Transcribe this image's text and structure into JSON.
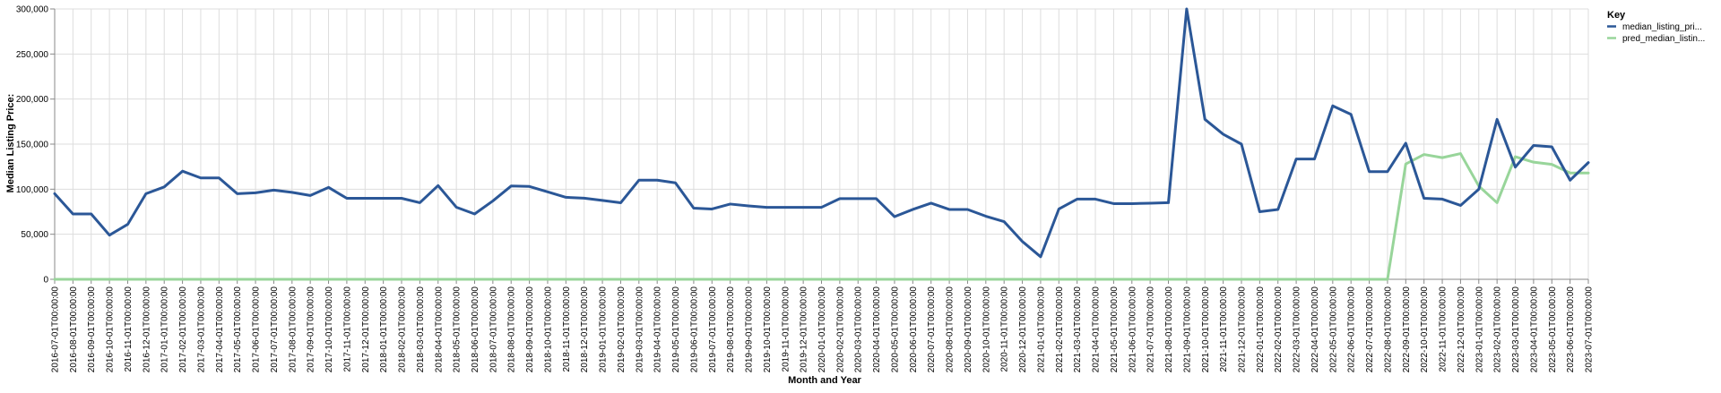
{
  "chart_data": {
    "type": "line",
    "title": "",
    "xlabel": "Month and Year",
    "ylabel": "Median Listing Price:",
    "ylim": [
      0,
      300000
    ],
    "y_ticks": [
      "0",
      "50,000",
      "100,000",
      "150,000",
      "200,000",
      "250,000",
      "300,000"
    ],
    "y_tick_values": [
      0,
      50000,
      100000,
      150000,
      200000,
      250000,
      300000
    ],
    "grid": true,
    "legend": {
      "title": "Key",
      "placement": "top-right"
    },
    "x": [
      "2016-07-01T00:00:00",
      "2016-08-01T00:00:00",
      "2016-09-01T00:00:00",
      "2016-10-01T00:00:00",
      "2016-11-01T00:00:00",
      "2016-12-01T00:00:00",
      "2017-01-01T00:00:00",
      "2017-02-01T00:00:00",
      "2017-03-01T00:00:00",
      "2017-04-01T00:00:00",
      "2017-05-01T00:00:00",
      "2017-06-01T00:00:00",
      "2017-07-01T00:00:00",
      "2017-08-01T00:00:00",
      "2017-09-01T00:00:00",
      "2017-10-01T00:00:00",
      "2017-11-01T00:00:00",
      "2017-12-01T00:00:00",
      "2018-01-01T00:00:00",
      "2018-02-01T00:00:00",
      "2018-03-01T00:00:00",
      "2018-04-01T00:00:00",
      "2018-05-01T00:00:00",
      "2018-06-01T00:00:00",
      "2018-07-01T00:00:00",
      "2018-08-01T00:00:00",
      "2018-09-01T00:00:00",
      "2018-10-01T00:00:00",
      "2018-11-01T00:00:00",
      "2018-12-01T00:00:00",
      "2019-01-01T00:00:00",
      "2019-02-01T00:00:00",
      "2019-03-01T00:00:00",
      "2019-04-01T00:00:00",
      "2019-05-01T00:00:00",
      "2019-06-01T00:00:00",
      "2019-07-01T00:00:00",
      "2019-08-01T00:00:00",
      "2019-09-01T00:00:00",
      "2019-10-01T00:00:00",
      "2019-11-01T00:00:00",
      "2019-12-01T00:00:00",
      "2020-01-01T00:00:00",
      "2020-02-01T00:00:00",
      "2020-03-01T00:00:00",
      "2020-04-01T00:00:00",
      "2020-05-01T00:00:00",
      "2020-06-01T00:00:00",
      "2020-07-01T00:00:00",
      "2020-08-01T00:00:00",
      "2020-09-01T00:00:00",
      "2020-10-01T00:00:00",
      "2020-11-01T00:00:00",
      "2020-12-01T00:00:00",
      "2021-01-01T00:00:00",
      "2021-02-01T00:00:00",
      "2021-03-01T00:00:00",
      "2021-04-01T00:00:00",
      "2021-05-01T00:00:00",
      "2021-06-01T00:00:00",
      "2021-07-01T00:00:00",
      "2021-08-01T00:00:00",
      "2021-09-01T00:00:00",
      "2021-10-01T00:00:00",
      "2021-11-01T00:00:00",
      "2021-12-01T00:00:00",
      "2022-01-01T00:00:00",
      "2022-02-01T00:00:00",
      "2022-03-01T00:00:00",
      "2022-04-01T00:00:00",
      "2022-05-01T00:00:00",
      "2022-06-01T00:00:00",
      "2022-07-01T00:00:00",
      "2022-08-01T00:00:00",
      "2022-09-01T00:00:00",
      "2022-10-01T00:00:00",
      "2022-11-01T00:00:00",
      "2022-12-01T00:00:00",
      "2023-01-01T00:00:00",
      "2023-02-01T00:00:00",
      "2023-03-01T00:00:00",
      "2023-04-01T00:00:00",
      "2023-05-01T00:00:00",
      "2023-06-01T00:00:00",
      "2023-07-01T00:00:00"
    ],
    "series": [
      {
        "name": "median_listing_pri...",
        "color": "#2b5797",
        "values": [
          95000,
          72500,
          72500,
          49000,
          61000,
          95000,
          102500,
          120000,
          112500,
          112500,
          95000,
          96000,
          99000,
          96500,
          93000,
          102000,
          89900,
          89900,
          89900,
          89900,
          85000,
          104000,
          80000,
          72500,
          87000,
          103500,
          103000,
          97000,
          91000,
          90000,
          87500,
          84900,
          110000,
          110000,
          107000,
          79000,
          78000,
          83500,
          81500,
          79900,
          79900,
          79900,
          79900,
          89500,
          89500,
          89500,
          69500,
          77500,
          84500,
          77500,
          77500,
          70000,
          64000,
          42000,
          25000,
          78000,
          89000,
          89000,
          84000,
          84000,
          84500,
          85000,
          300000,
          177500,
          161000,
          150000,
          75000,
          77500,
          133500,
          133500,
          192500,
          183000,
          119500,
          119500,
          151000,
          89900,
          89000,
          82000,
          100000,
          177500,
          124500,
          148500,
          147000,
          110000,
          129500
        ]
      },
      {
        "name": "pred_median_listin...",
        "color": "#98d59a",
        "values": [
          0,
          0,
          0,
          0,
          0,
          0,
          0,
          0,
          0,
          0,
          0,
          0,
          0,
          0,
          0,
          0,
          0,
          0,
          0,
          0,
          0,
          0,
          0,
          0,
          0,
          0,
          0,
          0,
          0,
          0,
          0,
          0,
          0,
          0,
          0,
          0,
          0,
          0,
          0,
          0,
          0,
          0,
          0,
          0,
          0,
          0,
          0,
          0,
          0,
          0,
          0,
          0,
          0,
          0,
          0,
          0,
          0,
          0,
          0,
          0,
          0,
          0,
          0,
          0,
          0,
          0,
          0,
          0,
          0,
          0,
          0,
          0,
          0,
          0,
          128000,
          138500,
          135000,
          139500,
          103500,
          85000,
          136000,
          130000,
          127500,
          118000,
          118000
        ]
      }
    ]
  }
}
